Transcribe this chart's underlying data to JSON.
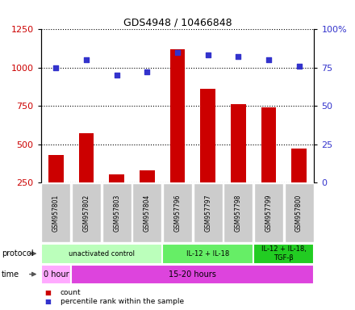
{
  "title": "GDS4948 / 10466848",
  "samples": [
    "GSM957801",
    "GSM957802",
    "GSM957803",
    "GSM957804",
    "GSM957796",
    "GSM957797",
    "GSM957798",
    "GSM957799",
    "GSM957800"
  ],
  "counts": [
    430,
    570,
    305,
    330,
    1120,
    860,
    760,
    740,
    470
  ],
  "percentiles": [
    75,
    80,
    70,
    72,
    85,
    83,
    82,
    80,
    76
  ],
  "count_color": "#cc0000",
  "percentile_color": "#3333cc",
  "ylim_left": [
    250,
    1250
  ],
  "ylim_right": [
    0,
    100
  ],
  "yticks_left": [
    250,
    500,
    750,
    1000,
    1250
  ],
  "yticks_right": [
    0,
    25,
    50,
    75,
    100
  ],
  "protocol_groups": [
    {
      "label": "unactivated control",
      "start": 0,
      "end": 4,
      "color": "#bbffbb"
    },
    {
      "label": "IL-12 + IL-18",
      "start": 4,
      "end": 7,
      "color": "#66ee66"
    },
    {
      "label": "IL-12 + IL-18,\nTGF-β",
      "start": 7,
      "end": 9,
      "color": "#22cc22"
    }
  ],
  "time_groups": [
    {
      "label": "0 hour",
      "start": 0,
      "end": 1,
      "color": "#ffaaff"
    },
    {
      "label": "15-20 hours",
      "start": 1,
      "end": 9,
      "color": "#dd44dd"
    }
  ],
  "bar_width": 0.5,
  "grid_color": "#000000",
  "background_color": "#ffffff",
  "tick_bg_color": "#cccccc"
}
